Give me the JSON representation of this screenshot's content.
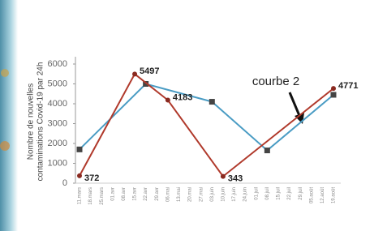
{
  "chart_data": {
    "type": "line",
    "y_label_lines": [
      "Nombre de nouvelles",
      "contaminations Covid-19 par 24h"
    ],
    "annotation": "courbe 2",
    "categories": [
      "11.mars",
      "18.mars",
      "25.mars",
      "01.avr",
      "08.avr",
      "15.avr",
      "22.avr",
      "29.avr",
      "06.mai",
      "13.mai",
      "20.mai",
      "27.mai",
      "03.juin",
      "10.juin",
      "17.juin",
      "24.juin",
      "01.juil",
      "08.juil",
      "15.juil",
      "22.juil",
      "29.juil",
      "05.août",
      "12.août",
      "19.août"
    ],
    "series": [
      {
        "color": "#4a9cc4",
        "marker": "square",
        "marker_color": "#444444",
        "x": [
          "11.mars",
          "22.avr",
          "03.juin",
          "08.juil",
          "19.août"
        ],
        "values": [
          1700,
          5000,
          4100,
          1650,
          4450
        ]
      },
      {
        "color": "#b0392b",
        "marker": "circle",
        "marker_color": "#8a2a20",
        "data_labels": true,
        "x": [
          "11.mars",
          "15.avr",
          "06.mai",
          "10.juin",
          "19.août"
        ],
        "values": [
          372,
          5497,
          4183,
          343,
          4771
        ]
      }
    ],
    "ylim": [
      0,
      6000
    ],
    "yticks": [
      0,
      1000,
      2000,
      3000,
      4000,
      5000,
      6000
    ],
    "grid": false
  }
}
